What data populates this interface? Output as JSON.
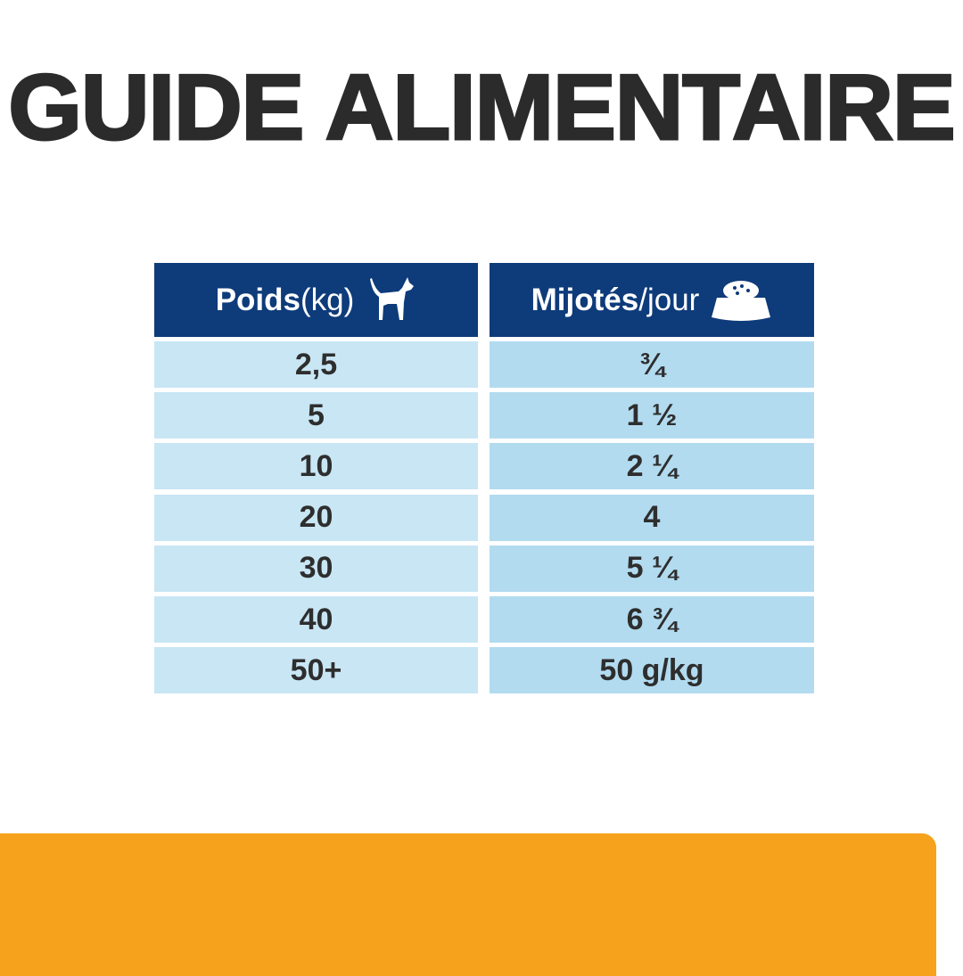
{
  "title": "GUIDE ALIMENTAIRE",
  "table": {
    "headers": [
      {
        "bold": "Poids",
        "light": " (kg)",
        "icon": "dog-icon"
      },
      {
        "bold": "Mijotés",
        "light": "/jour",
        "icon": "food-bowl-icon"
      }
    ],
    "rows": [
      [
        "2,5",
        "¾"
      ],
      [
        "5",
        "1 ½"
      ],
      [
        "10",
        "2 ¼"
      ],
      [
        "20",
        "4"
      ],
      [
        "30",
        "5 ¼"
      ],
      [
        "40",
        "6 ¾"
      ],
      [
        "50+",
        "50 g/kg"
      ]
    ]
  },
  "colors": {
    "header": "#0e3b7a",
    "cell_left": "#c8e6f4",
    "cell_right": "#b2dbf0",
    "accent": "#f7a21c",
    "text": "#2b2b2b"
  }
}
